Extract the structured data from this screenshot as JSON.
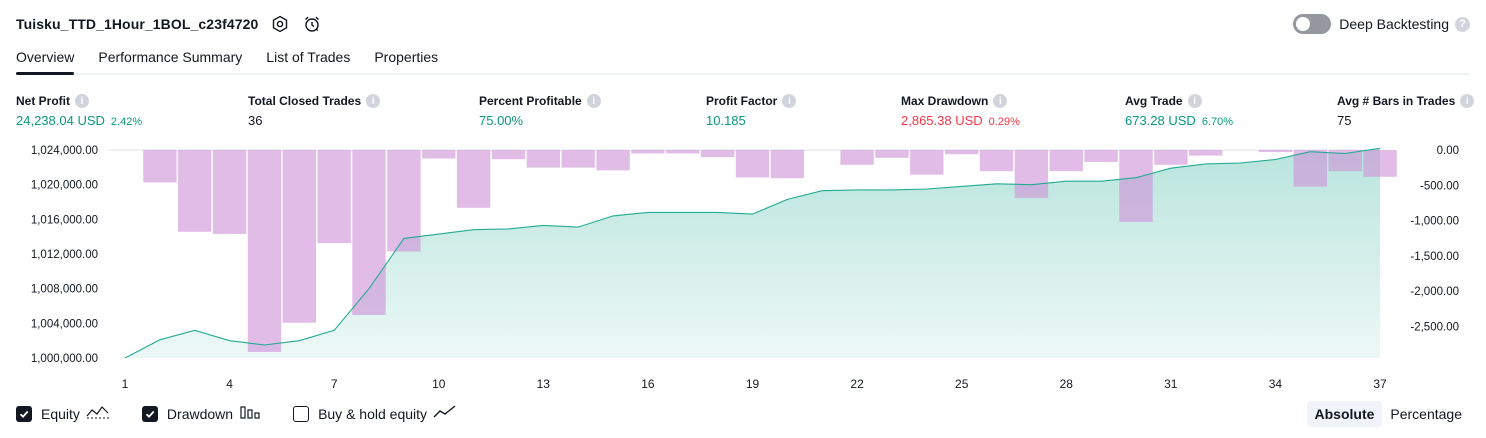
{
  "header": {
    "title": "Tuisku_TTD_1Hour_1BOL_c23f4720",
    "deep_backtesting_label": "Deep Backtesting",
    "deep_backtesting_enabled": false
  },
  "tabs": [
    {
      "label": "Overview",
      "active": true
    },
    {
      "label": "Performance Summary",
      "active": false
    },
    {
      "label": "List of Trades",
      "active": false
    },
    {
      "label": "Properties",
      "active": false
    }
  ],
  "metrics": [
    {
      "label": "Net Profit",
      "value": "24,238.04 USD",
      "sub": "2.42%",
      "tone": "pos"
    },
    {
      "label": "Total Closed Trades",
      "value": "36",
      "sub": "",
      "tone": "neu"
    },
    {
      "label": "Percent Profitable",
      "value": "75.00%",
      "sub": "",
      "tone": "pos"
    },
    {
      "label": "Profit Factor",
      "value": "10.185",
      "sub": "",
      "tone": "pos"
    },
    {
      "label": "Max Drawdown",
      "value": "2,865.38 USD",
      "sub": "0.29%",
      "tone": "neg"
    },
    {
      "label": "Avg Trade",
      "value": "673.28 USD",
      "sub": "6.70%",
      "tone": "pos"
    },
    {
      "label": "Avg # Bars in Trades",
      "value": "75",
      "sub": "",
      "tone": "neu"
    }
  ],
  "legend": {
    "equity_label": "Equity",
    "drawdown_label": "Drawdown",
    "buy_hold_label": "Buy & hold equity",
    "equity_checked": true,
    "drawdown_checked": true,
    "buy_hold_checked": false
  },
  "modes": {
    "absolute": "Absolute",
    "percentage": "Percentage",
    "selected": "absolute"
  },
  "colors": {
    "equity_line": "#22ab94",
    "equity_fill": "#22ab94",
    "drawdown_bar": "#ce93d8",
    "positive": "#089981",
    "negative": "#f23645"
  },
  "chart_data": {
    "type": "area",
    "x": [
      1,
      2,
      3,
      4,
      5,
      6,
      7,
      8,
      9,
      10,
      11,
      12,
      13,
      14,
      15,
      16,
      17,
      18,
      19,
      20,
      21,
      22,
      23,
      24,
      25,
      26,
      27,
      28,
      29,
      30,
      31,
      32,
      33,
      34,
      35,
      36,
      37
    ],
    "x_ticks": [
      1,
      4,
      7,
      10,
      13,
      16,
      19,
      22,
      25,
      28,
      31,
      34,
      37
    ],
    "series": [
      {
        "name": "Equity",
        "axis": "left",
        "values": [
          1000000,
          1002100,
          1003200,
          1002000,
          1001500,
          1002000,
          1003200,
          1008000,
          1013800,
          1014300,
          1014800,
          1014900,
          1015300,
          1015100,
          1016400,
          1016800,
          1016800,
          1016800,
          1016600,
          1018300,
          1019300,
          1019400,
          1019400,
          1019500,
          1019800,
          1020100,
          1020000,
          1020400,
          1020400,
          1020800,
          1021900,
          1022400,
          1022500,
          1022900,
          1023800,
          1023600,
          1024200
        ]
      },
      {
        "name": "Drawdown",
        "axis": "right",
        "values": [
          0,
          -460,
          -1160,
          -1190,
          -2865,
          -2450,
          -1320,
          -2340,
          -1440,
          -120,
          -820,
          -130,
          -250,
          -250,
          -290,
          -50,
          -50,
          -100,
          -390,
          -400,
          0,
          -210,
          -110,
          -350,
          -60,
          -300,
          -680,
          -300,
          -170,
          -1020,
          -210,
          -80,
          0,
          -30,
          -520,
          -300,
          -380
        ]
      }
    ],
    "y_left_ticks": [
      "1,000,000.00",
      "1,004,000.00",
      "1,008,000.00",
      "1,012,000.00",
      "1,016,000.00",
      "1,020,000.00",
      "1,024,000.00"
    ],
    "y_left_range": [
      1000000,
      1024000
    ],
    "y_right_ticks": [
      "0.00",
      "-500.00",
      "-1,000.00",
      "-1,500.00",
      "-2,000.00",
      "-2,500.00"
    ],
    "y_right_range": [
      -2950,
      0
    ]
  }
}
